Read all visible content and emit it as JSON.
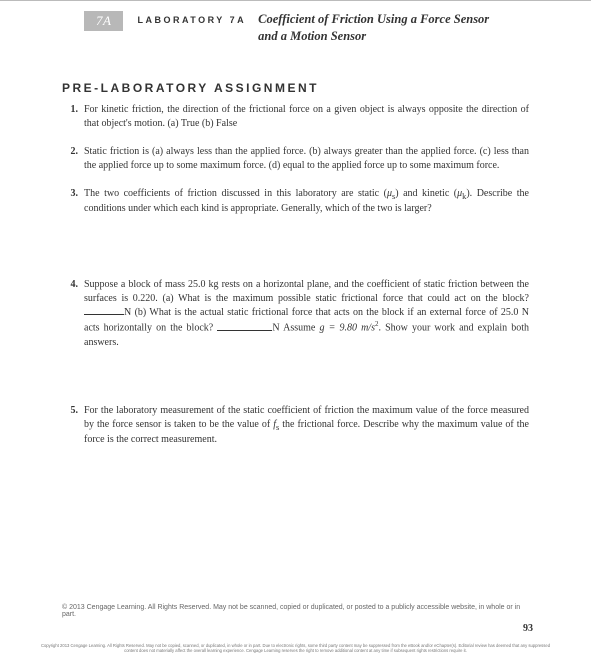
{
  "header": {
    "tab": "7A",
    "lab_label": "LABORATORY 7A",
    "title_line1": "Coefficient of Friction Using a Force Sensor",
    "title_line2": "and a Motion Sensor"
  },
  "section_heading": "PRE-LABORATORY ASSIGNMENT",
  "questions": {
    "q1": {
      "num": "1.",
      "text": "For kinetic friction, the direction of the frictional force on a given object is always opposite the direction of that object's motion. (a) True (b) False"
    },
    "q2": {
      "num": "2.",
      "text": "Static friction is (a) always less than the applied force. (b) always greater than the applied force. (c) less than the applied force up to some maximum force. (d) equal to the applied force up to some maximum force."
    },
    "q3": {
      "num": "3.",
      "pre": "The two coefficients of friction discussed in this laboratory are static (",
      "mu_s": "μ",
      "sub_s": "s",
      "mid1": ") and kinetic (",
      "mu_k": "μ",
      "sub_k": "k",
      "post": "). Describe the conditions under which each kind is appropriate. Generally, which of the two is larger?"
    },
    "q4": {
      "num": "4.",
      "p1": "Suppose a block of mass 25.0 kg rests on a horizontal plane, and the coefficient of static friction between the surfaces is 0.220. (a) What is the maximum possible static frictional force that could act on the block? ",
      "unit1": "N (b) What is the actual static frictional force that acts on the block if an external force of 25.0 N acts horizontally on the block? ",
      "unit2": "N Assume ",
      "g_expr": "g = 9.80 m/s",
      "sq": "2",
      "tail": ". Show your work and explain both answers."
    },
    "q5": {
      "num": "5.",
      "pre": "For the laboratory measurement of the static coefficient of friction the maximum value of the force measured by the force sensor is taken to be the value of ",
      "fs_i": "f",
      "fs_s": "s",
      "post": " the frictional force. Describe why the maximum value of the force is the correct measurement."
    }
  },
  "copyright": "© 2013 Cengage Learning. All Rights Reserved. May not be scanned, copied or duplicated, or posted to a publicly accessible website, in whole or in part.",
  "page_number": "93",
  "tiny_legal": "Copyright 2013 Cengage Learning. All Rights Reserved. May not be copied, scanned, or duplicated, in whole or in part. Due to electronic rights, some third party content may be suppressed from the eBook and/or eChapter(s). Editorial review has deemed that any suppressed content does not materially affect the overall learning experience. Cengage Learning reserves the right to remove additional content at any time if subsequent rights restrictions require it."
}
